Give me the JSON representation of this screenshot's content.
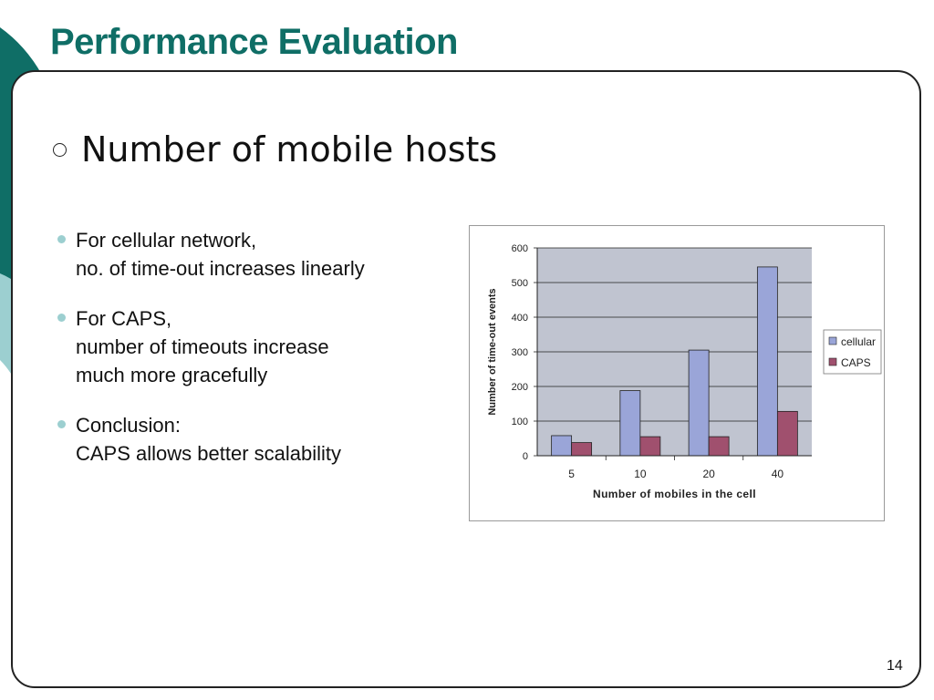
{
  "slide": {
    "title": "Performance Evaluation",
    "subtitle": "Number of mobile hosts",
    "page_number": "14"
  },
  "bullets": [
    {
      "lines": [
        "For cellular network,",
        "no. of time-out increases linearly"
      ]
    },
    {
      "lines": [
        "For CAPS,",
        "number of timeouts increase",
        "much more gracefully"
      ]
    },
    {
      "lines": [
        "Conclusion:",
        "CAPS allows better scalability"
      ]
    }
  ],
  "colors": {
    "title": "#0f6e66",
    "bullet_dot": "#9ccfd0",
    "plot_background": "#c0c4d0",
    "cellular": "#9aa5d8",
    "caps": "#a0506e"
  },
  "chart_data": {
    "type": "bar",
    "title": "",
    "xlabel": "Number of mobiles in the cell",
    "ylabel": "Number of time-out events",
    "categories": [
      "5",
      "10",
      "20",
      "40"
    ],
    "series": [
      {
        "name": "cellular",
        "values": [
          58,
          188,
          305,
          545
        ]
      },
      {
        "name": "CAPS",
        "values": [
          38,
          55,
          55,
          128
        ]
      }
    ],
    "ylim": [
      0,
      600
    ],
    "yticks": [
      0,
      100,
      200,
      300,
      400,
      500,
      600
    ],
    "grid": true,
    "legend": "right"
  }
}
